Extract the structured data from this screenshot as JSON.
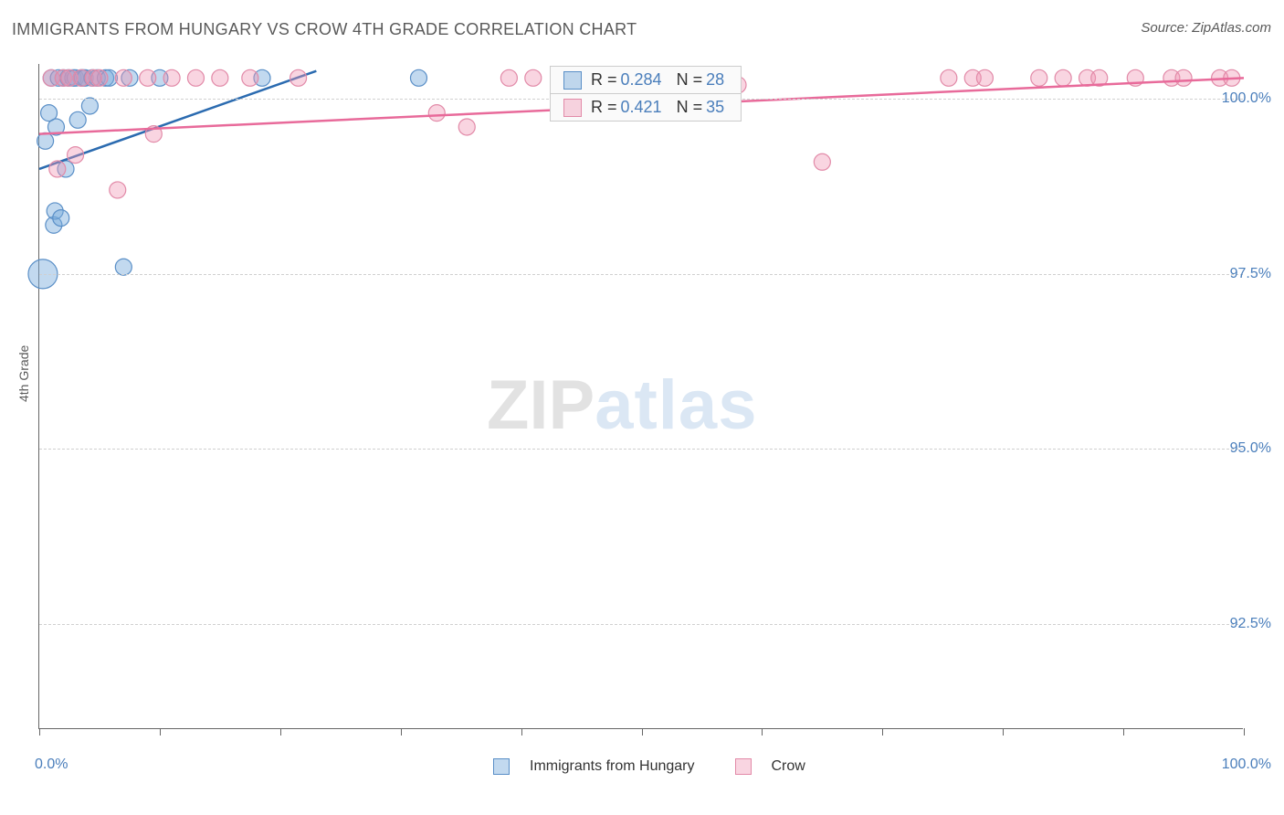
{
  "title": "IMMIGRANTS FROM HUNGARY VS CROW 4TH GRADE CORRELATION CHART",
  "source_label": "Source: ",
  "source_name": "ZipAtlas.com",
  "y_axis_label": "4th Grade",
  "watermark_1": "ZIP",
  "watermark_2": "atlas",
  "chart": {
    "type": "scatter",
    "background_color": "#ffffff",
    "grid_color": "#d0d0d0",
    "axis_color": "#666666",
    "text_color": "#5a5a5a",
    "label_color": "#4a7ebb",
    "xlim": [
      0,
      100
    ],
    "ylim": [
      91.0,
      100.5
    ],
    "y_ticks": [
      92.5,
      95.0,
      97.5,
      100.0
    ],
    "y_tick_labels": [
      "92.5%",
      "95.0%",
      "97.5%",
      "100.0%"
    ],
    "x_tick_positions": [
      0,
      10,
      20,
      30,
      40,
      50,
      60,
      70,
      80,
      90,
      100
    ],
    "x_min_label": "0.0%",
    "x_max_label": "100.0%",
    "series": [
      {
        "name": "Immigrants from Hungary",
        "fill": "rgba(120,170,220,0.45)",
        "stroke": "#5a8fc7",
        "line_color": "#2b6bb0",
        "r_value": "0.284",
        "n_value": "28",
        "trend": {
          "x1": 0,
          "y1": 99.0,
          "x2": 23,
          "y2": 100.4
        },
        "points": [
          {
            "x": 0.3,
            "y": 97.5,
            "r": 16
          },
          {
            "x": 0.5,
            "y": 99.4,
            "r": 9
          },
          {
            "x": 0.8,
            "y": 99.8,
            "r": 9
          },
          {
            "x": 1.0,
            "y": 100.3,
            "r": 9
          },
          {
            "x": 1.2,
            "y": 98.2,
            "r": 9
          },
          {
            "x": 1.3,
            "y": 98.4,
            "r": 9
          },
          {
            "x": 1.4,
            "y": 99.6,
            "r": 9
          },
          {
            "x": 1.6,
            "y": 100.3,
            "r": 9
          },
          {
            "x": 1.8,
            "y": 98.3,
            "r": 9
          },
          {
            "x": 2.0,
            "y": 100.3,
            "r": 9
          },
          {
            "x": 2.2,
            "y": 99.0,
            "r": 9
          },
          {
            "x": 2.4,
            "y": 100.3,
            "r": 9
          },
          {
            "x": 2.8,
            "y": 100.3,
            "r": 9
          },
          {
            "x": 3.0,
            "y": 100.3,
            "r": 9
          },
          {
            "x": 3.2,
            "y": 99.7,
            "r": 9
          },
          {
            "x": 3.5,
            "y": 100.3,
            "r": 9
          },
          {
            "x": 3.6,
            "y": 100.3,
            "r": 9
          },
          {
            "x": 3.8,
            "y": 100.3,
            "r": 9
          },
          {
            "x": 4.2,
            "y": 99.9,
            "r": 9
          },
          {
            "x": 4.4,
            "y": 100.3,
            "r": 9
          },
          {
            "x": 4.8,
            "y": 100.3,
            "r": 9
          },
          {
            "x": 5.5,
            "y": 100.3,
            "r": 9
          },
          {
            "x": 5.8,
            "y": 100.3,
            "r": 9
          },
          {
            "x": 7.0,
            "y": 97.6,
            "r": 9
          },
          {
            "x": 7.5,
            "y": 100.3,
            "r": 9
          },
          {
            "x": 10.0,
            "y": 100.3,
            "r": 9
          },
          {
            "x": 18.5,
            "y": 100.3,
            "r": 9
          },
          {
            "x": 31.5,
            "y": 100.3,
            "r": 9
          }
        ]
      },
      {
        "name": "Crow",
        "fill": "rgba(240,150,180,0.40)",
        "stroke": "#e28aa8",
        "line_color": "#e86a9a",
        "r_value": "0.421",
        "n_value": "35",
        "trend": {
          "x1": 0,
          "y1": 99.5,
          "x2": 100,
          "y2": 100.3
        },
        "points": [
          {
            "x": 1.0,
            "y": 100.3,
            "r": 9
          },
          {
            "x": 1.5,
            "y": 99.0,
            "r": 9
          },
          {
            "x": 2.0,
            "y": 100.3,
            "r": 9
          },
          {
            "x": 2.5,
            "y": 100.3,
            "r": 9
          },
          {
            "x": 3.0,
            "y": 99.2,
            "r": 9
          },
          {
            "x": 3.5,
            "y": 100.3,
            "r": 9
          },
          {
            "x": 4.5,
            "y": 100.3,
            "r": 9
          },
          {
            "x": 5.0,
            "y": 100.3,
            "r": 9
          },
          {
            "x": 6.5,
            "y": 98.7,
            "r": 9
          },
          {
            "x": 7.0,
            "y": 100.3,
            "r": 9
          },
          {
            "x": 9.0,
            "y": 100.3,
            "r": 9
          },
          {
            "x": 9.5,
            "y": 99.5,
            "r": 9
          },
          {
            "x": 11.0,
            "y": 100.3,
            "r": 9
          },
          {
            "x": 13.0,
            "y": 100.3,
            "r": 9
          },
          {
            "x": 15.0,
            "y": 100.3,
            "r": 9
          },
          {
            "x": 17.5,
            "y": 100.3,
            "r": 9
          },
          {
            "x": 21.5,
            "y": 100.3,
            "r": 9
          },
          {
            "x": 33.0,
            "y": 99.8,
            "r": 9
          },
          {
            "x": 35.5,
            "y": 99.6,
            "r": 9
          },
          {
            "x": 39.0,
            "y": 100.3,
            "r": 9
          },
          {
            "x": 41.0,
            "y": 100.3,
            "r": 9
          },
          {
            "x": 58.0,
            "y": 100.2,
            "r": 9
          },
          {
            "x": 65.0,
            "y": 99.1,
            "r": 9
          },
          {
            "x": 75.5,
            "y": 100.3,
            "r": 9
          },
          {
            "x": 77.5,
            "y": 100.3,
            "r": 9
          },
          {
            "x": 78.5,
            "y": 100.3,
            "r": 9
          },
          {
            "x": 83.0,
            "y": 100.3,
            "r": 9
          },
          {
            "x": 85.0,
            "y": 100.3,
            "r": 9
          },
          {
            "x": 87.0,
            "y": 100.3,
            "r": 9
          },
          {
            "x": 88.0,
            "y": 100.3,
            "r": 9
          },
          {
            "x": 91.0,
            "y": 100.3,
            "r": 9
          },
          {
            "x": 94.0,
            "y": 100.3,
            "r": 9
          },
          {
            "x": 95.0,
            "y": 100.3,
            "r": 9
          },
          {
            "x": 98.0,
            "y": 100.3,
            "r": 9
          },
          {
            "x": 99.0,
            "y": 100.3,
            "r": 9
          }
        ]
      }
    ]
  },
  "legend_top": {
    "r_label": "R =",
    "n_label": "N ="
  },
  "legend_bottom": {
    "series1_label": "Immigrants from Hungary",
    "series2_label": "Crow"
  }
}
